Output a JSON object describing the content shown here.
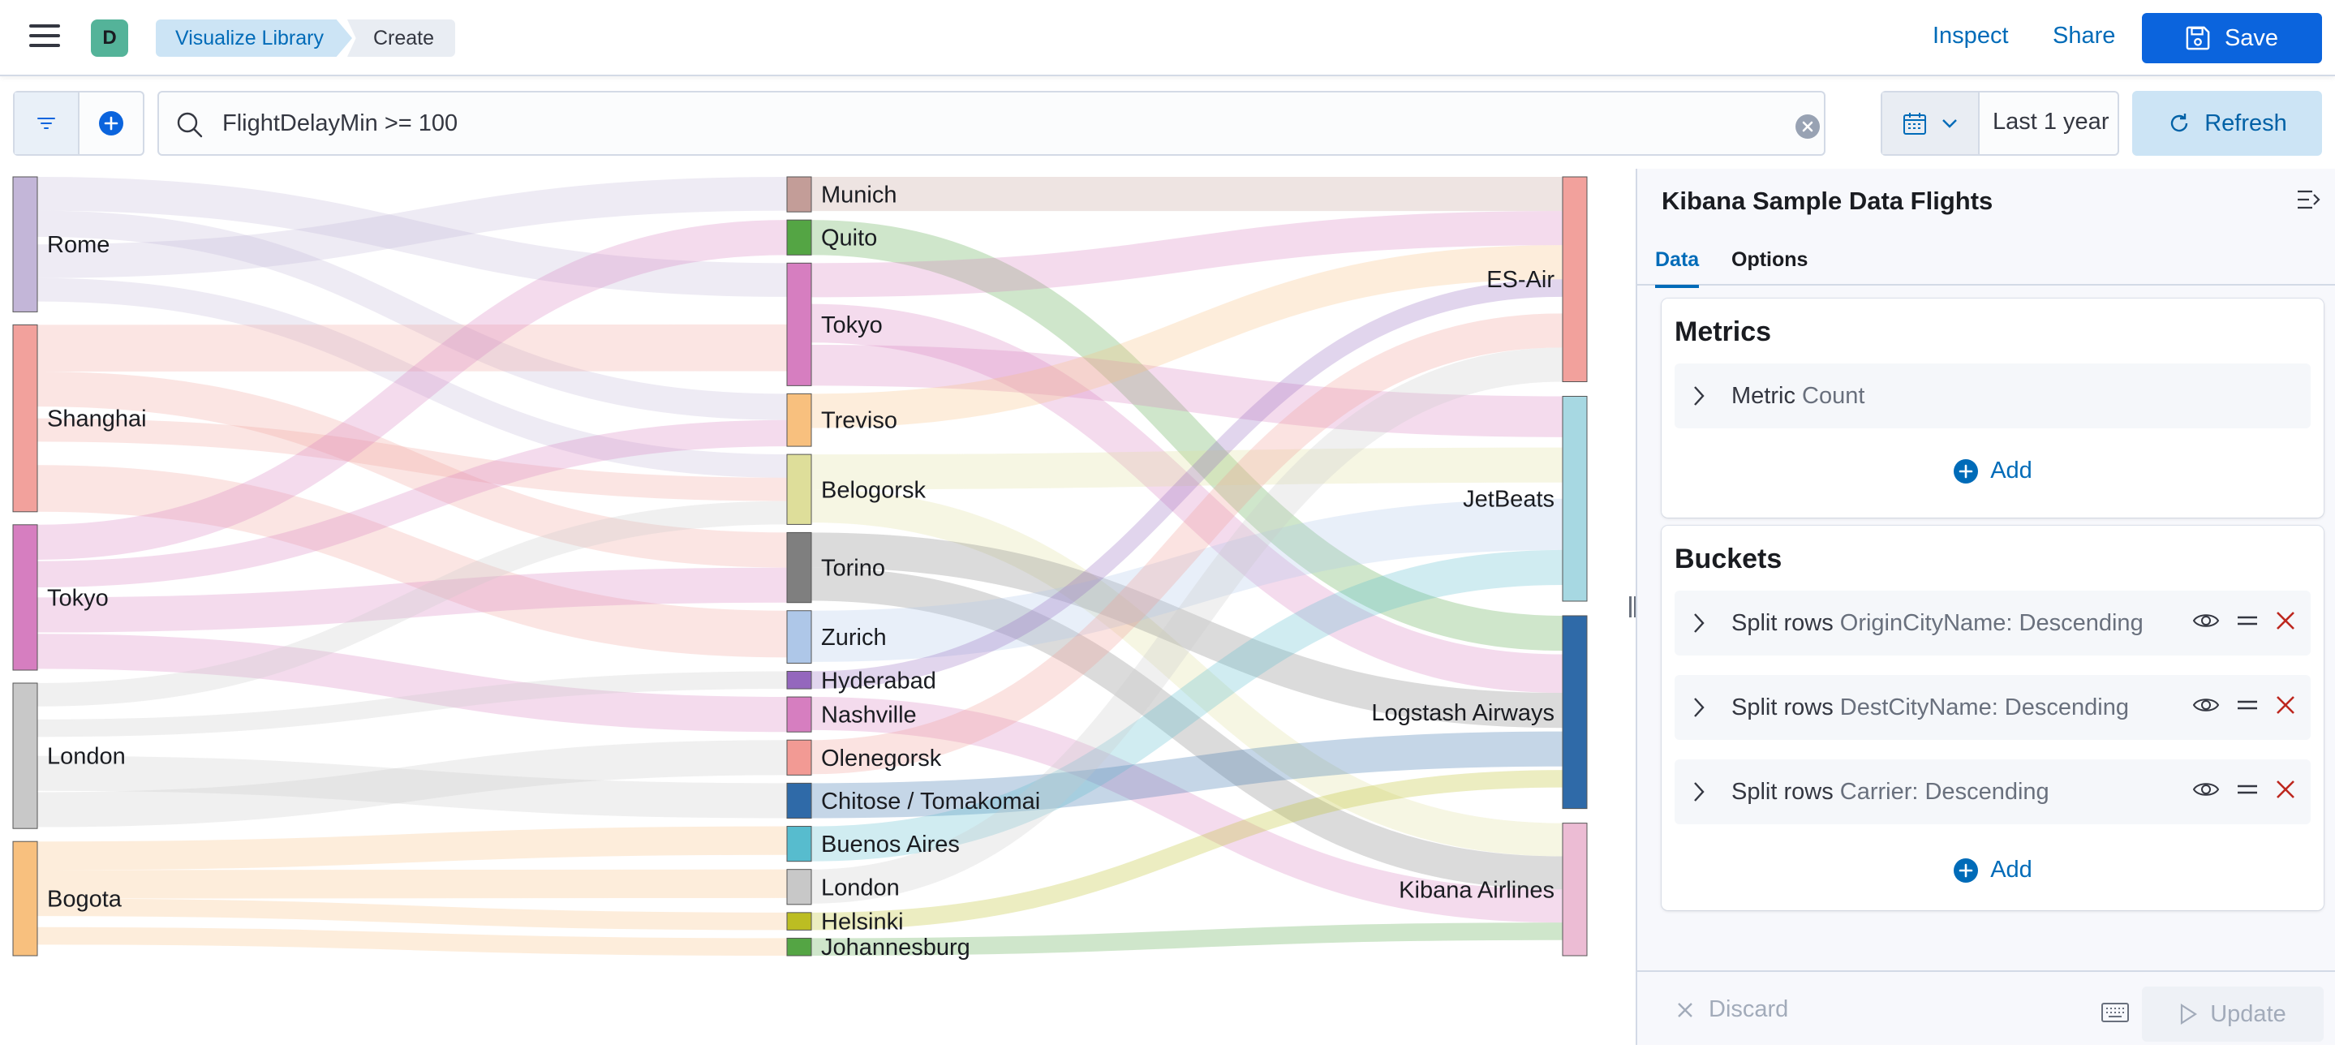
{
  "header": {
    "space_initial": "D",
    "breadcrumbs": [
      "Visualize Library",
      "Create"
    ],
    "inspect_label": "Inspect",
    "share_label": "Share",
    "save_label": "Save"
  },
  "query": {
    "value": "FlightDelayMin >= 100",
    "time_range": "Last 1 year",
    "refresh_label": "Refresh"
  },
  "sidebar": {
    "title": "Kibana Sample Data Flights",
    "tabs": [
      "Data",
      "Options"
    ],
    "metrics": {
      "title": "Metrics",
      "items": [
        {
          "label": "Metric",
          "desc": "Count"
        }
      ],
      "add_label": "Add"
    },
    "buckets": {
      "title": "Buckets",
      "items": [
        {
          "label": "Split rows",
          "desc": "OriginCityName: Descending"
        },
        {
          "label": "Split rows",
          "desc": "DestCityName: Descending"
        },
        {
          "label": "Split rows",
          "desc": "Carrier: Descending"
        }
      ],
      "add_label": "Add"
    },
    "discard_label": "Discard",
    "update_label": "Update"
  },
  "chart_data": {
    "type": "sankey",
    "levels": [
      {
        "name": "OriginCityName",
        "nodes": [
          {
            "label": "Rome",
            "weight": 13,
            "color": "#c3b6d8"
          },
          {
            "label": "Shanghai",
            "weight": 18,
            "color": "#f2a19c"
          },
          {
            "label": "Tokyo",
            "weight": 14,
            "color": "#d67ec0"
          },
          {
            "label": "London",
            "weight": 14,
            "color": "#c8c8c8"
          },
          {
            "label": "Bogota",
            "weight": 11,
            "color": "#f8c07e"
          }
        ]
      },
      {
        "name": "DestCityName",
        "nodes": [
          {
            "label": "Munich",
            "weight": 2,
            "color": "#c39d98"
          },
          {
            "label": "Quito",
            "weight": 2,
            "color": "#54a544"
          },
          {
            "label": "Tokyo",
            "weight": 7,
            "color": "#d67ec0"
          },
          {
            "label": "Treviso",
            "weight": 3,
            "color": "#f8c07e"
          },
          {
            "label": "Belogorsk",
            "weight": 4,
            "color": "#dede9a"
          },
          {
            "label": "Torino",
            "weight": 4,
            "color": "#7f7f7f"
          },
          {
            "label": "Zurich",
            "weight": 3,
            "color": "#aec7e8"
          },
          {
            "label": "Hyderabad",
            "weight": 1,
            "color": "#9467bd"
          },
          {
            "label": "Nashville",
            "weight": 2,
            "color": "#d67ec0"
          },
          {
            "label": "Olenegorsk",
            "weight": 2,
            "color": "#f29a94"
          },
          {
            "label": "Chitose / Tomakomai",
            "weight": 2,
            "color": "#2f6aa8"
          },
          {
            "label": "Buenos Aires",
            "weight": 2,
            "color": "#57bcce"
          },
          {
            "label": "London",
            "weight": 2,
            "color": "#c8c8c8"
          },
          {
            "label": "Helsinki",
            "weight": 1,
            "color": "#bcbd22"
          },
          {
            "label": "Johannesburg",
            "weight": 1,
            "color": "#54a544"
          }
        ]
      },
      {
        "name": "Carrier",
        "nodes": [
          {
            "label": "ES-Air",
            "weight": 17,
            "color": "#f2a19c"
          },
          {
            "label": "JetBeats",
            "weight": 17,
            "color": "#a7d8e2"
          },
          {
            "label": "Logstash Airways",
            "weight": 16,
            "color": "#2f6aa8"
          },
          {
            "label": "Kibana Airlines",
            "weight": 11,
            "color": "#ecbcd4"
          }
        ]
      }
    ],
    "links": [
      {
        "from": [
          0,
          0
        ],
        "to": [
          1,
          2
        ]
      },
      {
        "from": [
          0,
          0
        ],
        "to": [
          1,
          3
        ]
      },
      {
        "from": [
          0,
          0
        ],
        "to": [
          1,
          0
        ]
      },
      {
        "from": [
          0,
          0
        ],
        "to": [
          1,
          4
        ]
      },
      {
        "from": [
          0,
          1
        ],
        "to": [
          1,
          2
        ]
      },
      {
        "from": [
          0,
          1
        ],
        "to": [
          1,
          5
        ]
      },
      {
        "from": [
          0,
          1
        ],
        "to": [
          1,
          4
        ]
      },
      {
        "from": [
          0,
          1
        ],
        "to": [
          1,
          6
        ]
      },
      {
        "from": [
          0,
          2
        ],
        "to": [
          1,
          1
        ]
      },
      {
        "from": [
          0,
          2
        ],
        "to": [
          1,
          3
        ]
      },
      {
        "from": [
          0,
          2
        ],
        "to": [
          1,
          5
        ]
      },
      {
        "from": [
          0,
          2
        ],
        "to": [
          1,
          8
        ]
      },
      {
        "from": [
          0,
          3
        ],
        "to": [
          1,
          4
        ]
      },
      {
        "from": [
          0,
          3
        ],
        "to": [
          1,
          7
        ]
      },
      {
        "from": [
          0,
          3
        ],
        "to": [
          1,
          10
        ]
      },
      {
        "from": [
          0,
          3
        ],
        "to": [
          1,
          9
        ]
      },
      {
        "from": [
          0,
          4
        ],
        "to": [
          1,
          11
        ]
      },
      {
        "from": [
          0,
          4
        ],
        "to": [
          1,
          12
        ]
      },
      {
        "from": [
          0,
          4
        ],
        "to": [
          1,
          13
        ]
      },
      {
        "from": [
          0,
          4
        ],
        "to": [
          1,
          14
        ]
      },
      {
        "from": [
          1,
          0
        ],
        "to": [
          2,
          0
        ]
      },
      {
        "from": [
          1,
          1
        ],
        "to": [
          2,
          2
        ]
      },
      {
        "from": [
          1,
          2
        ],
        "to": [
          2,
          0
        ]
      },
      {
        "from": [
          1,
          2
        ],
        "to": [
          2,
          2
        ]
      },
      {
        "from": [
          1,
          2
        ],
        "to": [
          2,
          1
        ]
      },
      {
        "from": [
          1,
          3
        ],
        "to": [
          2,
          0
        ]
      },
      {
        "from": [
          1,
          4
        ],
        "to": [
          2,
          1
        ]
      },
      {
        "from": [
          1,
          4
        ],
        "to": [
          2,
          3
        ]
      },
      {
        "from": [
          1,
          5
        ],
        "to": [
          2,
          2
        ]
      },
      {
        "from": [
          1,
          5
        ],
        "to": [
          2,
          3
        ]
      },
      {
        "from": [
          1,
          6
        ],
        "to": [
          2,
          1
        ]
      },
      {
        "from": [
          1,
          7
        ],
        "to": [
          2,
          0
        ]
      },
      {
        "from": [
          1,
          8
        ],
        "to": [
          2,
          3
        ]
      },
      {
        "from": [
          1,
          9
        ],
        "to": [
          2,
          0
        ]
      },
      {
        "from": [
          1,
          10
        ],
        "to": [
          2,
          2
        ]
      },
      {
        "from": [
          1,
          11
        ],
        "to": [
          2,
          1
        ]
      },
      {
        "from": [
          1,
          12
        ],
        "to": [
          2,
          0
        ]
      },
      {
        "from": [
          1,
          13
        ],
        "to": [
          2,
          2
        ]
      },
      {
        "from": [
          1,
          14
        ],
        "to": [
          2,
          3
        ]
      }
    ]
  }
}
